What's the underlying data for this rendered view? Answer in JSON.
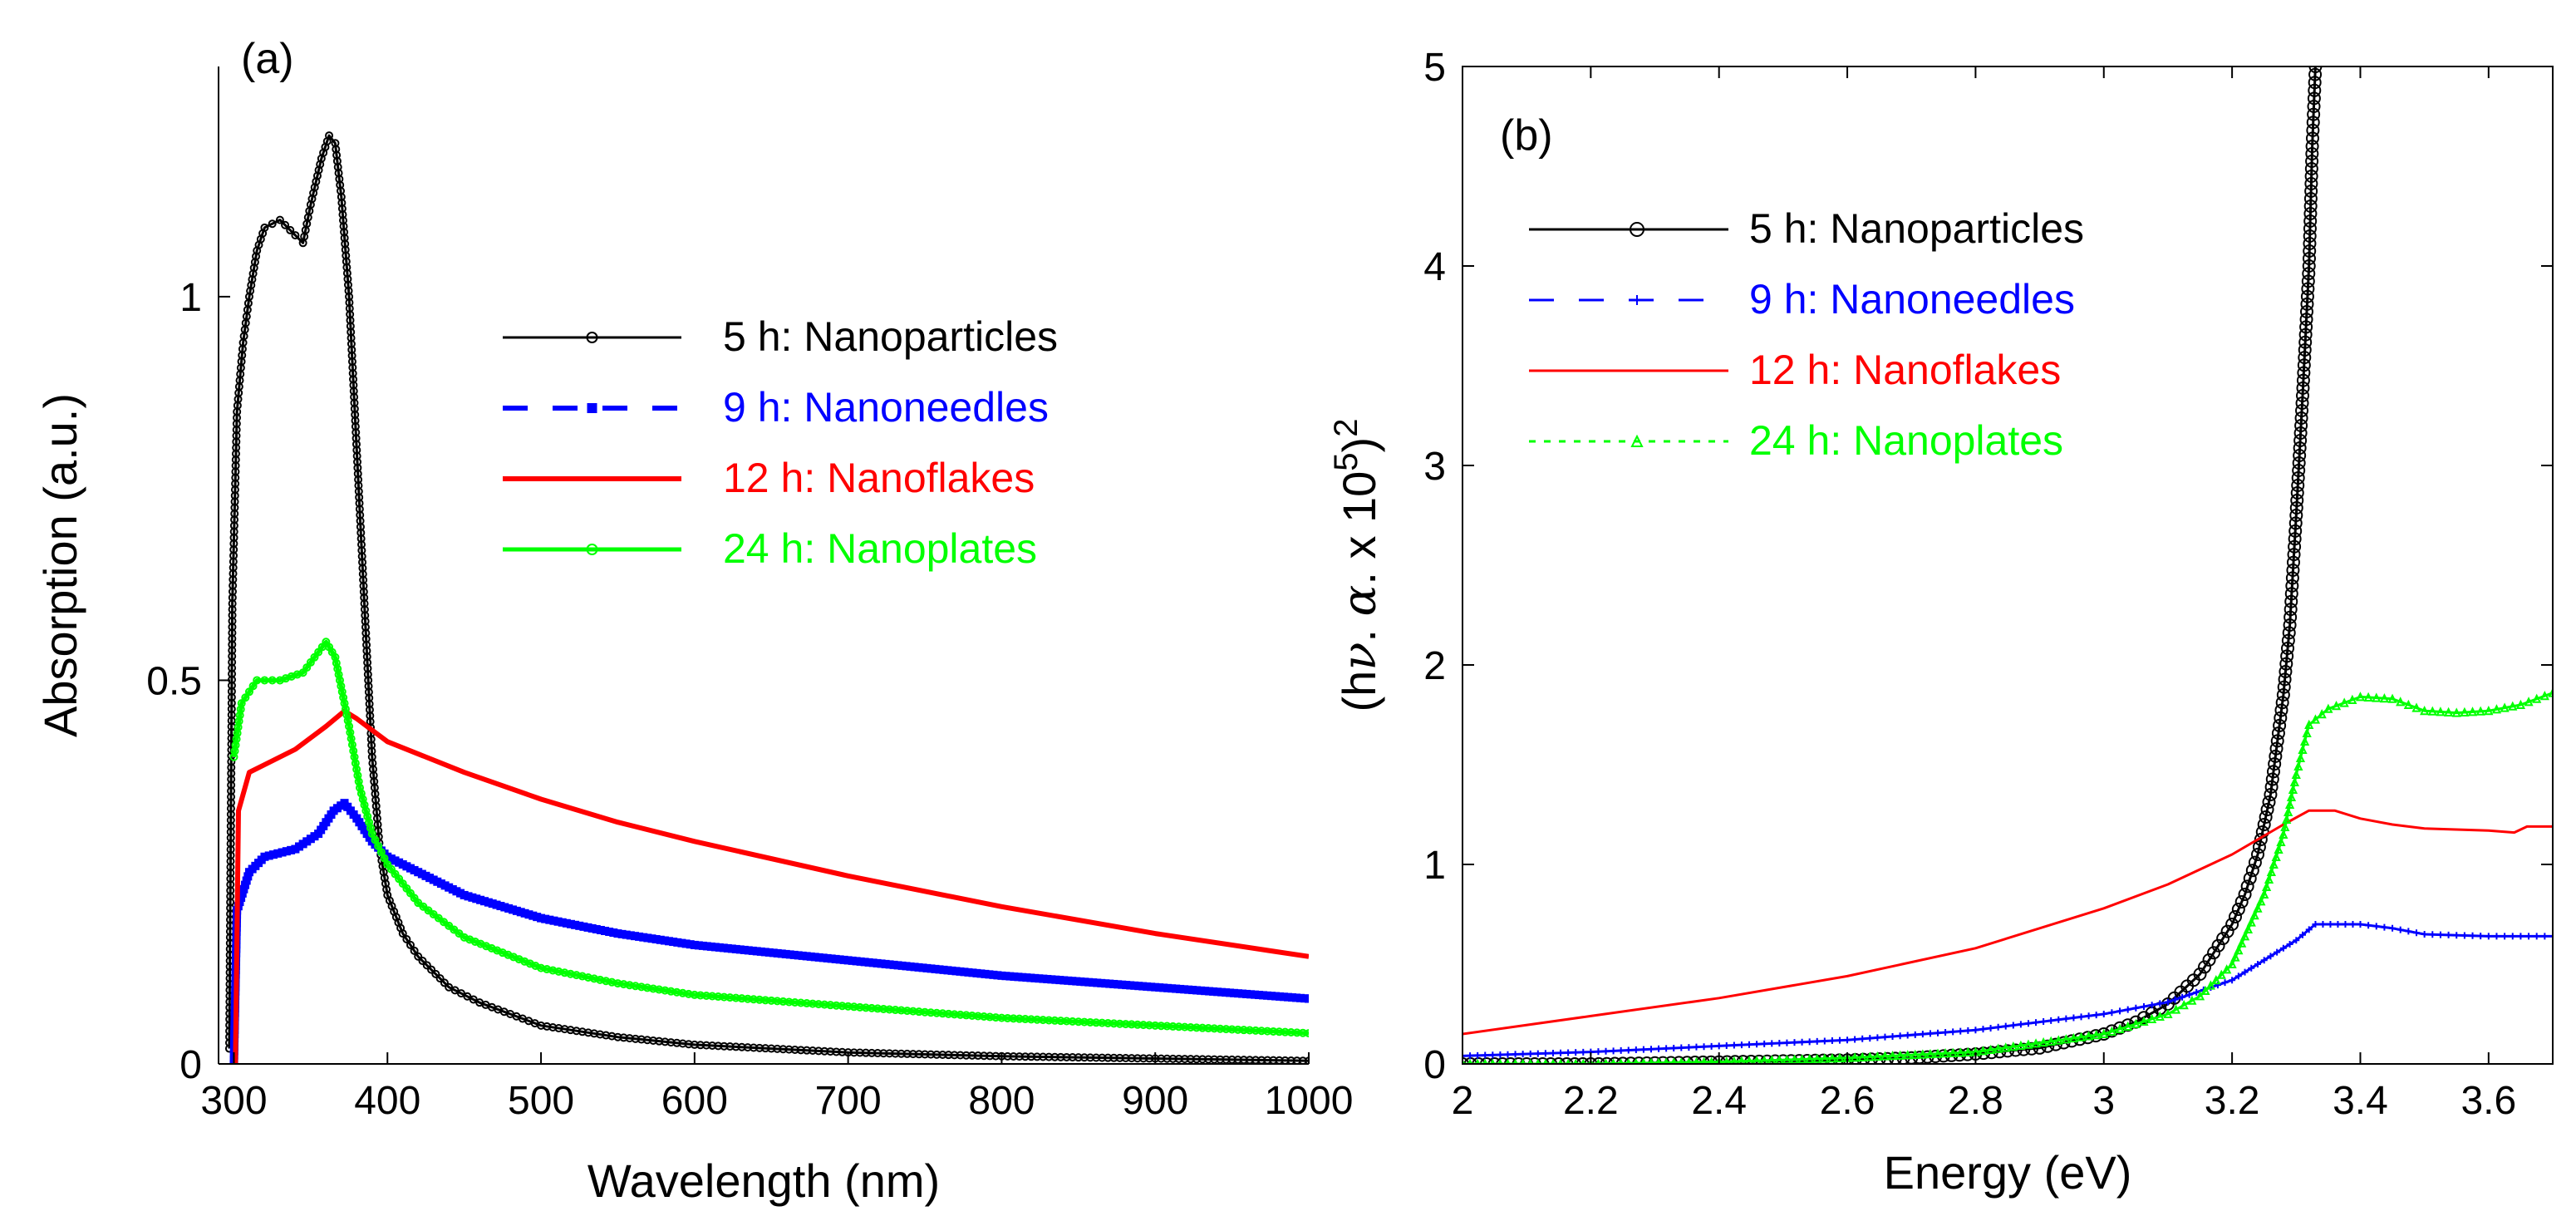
{
  "chart_data": [
    {
      "panel_label": "(a)",
      "type": "line",
      "xlabel": "Wavelength (nm)",
      "ylabel": "Absorption (a.u.)",
      "xlim": [
        290,
        1000
      ],
      "ylim": [
        0,
        1.3
      ],
      "xticks": [
        300,
        400,
        500,
        600,
        700,
        800,
        900,
        1000
      ],
      "yticks": [
        0,
        0.5,
        1
      ],
      "ytick_labels": [
        "0",
        "0.5",
        "1"
      ],
      "legend_position": "upper-right",
      "series": [
        {
          "name": "5 h: Nanoparticles",
          "color": "#000000",
          "marker": "circle",
          "line_width": 3,
          "points": [
            [
              297,
              0.02
            ],
            [
              299,
              0.6
            ],
            [
              302,
              0.85
            ],
            [
              306,
              0.94
            ],
            [
              310,
              1.0
            ],
            [
              315,
              1.06
            ],
            [
              320,
              1.09
            ],
            [
              330,
              1.1
            ],
            [
              340,
              1.08
            ],
            [
              345,
              1.07
            ],
            [
              350,
              1.12
            ],
            [
              357,
              1.18
            ],
            [
              362,
              1.21
            ],
            [
              366,
              1.2
            ],
            [
              370,
              1.13
            ],
            [
              375,
              1.0
            ],
            [
              380,
              0.8
            ],
            [
              385,
              0.6
            ],
            [
              390,
              0.4
            ],
            [
              395,
              0.28
            ],
            [
              400,
              0.22
            ],
            [
              410,
              0.17
            ],
            [
              420,
              0.14
            ],
            [
              440,
              0.1
            ],
            [
              460,
              0.08
            ],
            [
              480,
              0.065
            ],
            [
              500,
              0.05
            ],
            [
              550,
              0.035
            ],
            [
              600,
              0.025
            ],
            [
              700,
              0.015
            ],
            [
              800,
              0.01
            ],
            [
              900,
              0.007
            ],
            [
              1000,
              0.004
            ]
          ]
        },
        {
          "name": "9 h: Nanoneedles",
          "color": "#0000ff",
          "marker": "square",
          "line_width": 9,
          "points": [
            [
              300,
              0.0
            ],
            [
              302,
              0.2
            ],
            [
              310,
              0.25
            ],
            [
              320,
              0.27
            ],
            [
              340,
              0.28
            ],
            [
              355,
              0.3
            ],
            [
              365,
              0.33
            ],
            [
              372,
              0.34
            ],
            [
              380,
              0.32
            ],
            [
              390,
              0.29
            ],
            [
              400,
              0.27
            ],
            [
              450,
              0.22
            ],
            [
              500,
              0.19
            ],
            [
              550,
              0.17
            ],
            [
              600,
              0.155
            ],
            [
              700,
              0.135
            ],
            [
              800,
              0.115
            ],
            [
              900,
              0.1
            ],
            [
              1000,
              0.085
            ]
          ]
        },
        {
          "name": "12 h: Nanoflakes",
          "color": "#ff0000",
          "marker": "none",
          "line_width": 6,
          "points": [
            [
              301,
              0.0
            ],
            [
              303,
              0.33
            ],
            [
              310,
              0.38
            ],
            [
              320,
              0.39
            ],
            [
              340,
              0.41
            ],
            [
              360,
              0.44
            ],
            [
              372,
              0.46
            ],
            [
              380,
              0.45
            ],
            [
              400,
              0.42
            ],
            [
              450,
              0.38
            ],
            [
              500,
              0.345
            ],
            [
              550,
              0.315
            ],
            [
              600,
              0.29
            ],
            [
              700,
              0.245
            ],
            [
              800,
              0.205
            ],
            [
              900,
              0.17
            ],
            [
              1000,
              0.14
            ]
          ]
        },
        {
          "name": "24 h: Nanoplates",
          "color": "#00ff00",
          "marker": "circle",
          "line_width": 5,
          "points": [
            [
              300,
              0.4
            ],
            [
              305,
              0.47
            ],
            [
              315,
              0.5
            ],
            [
              330,
              0.5
            ],
            [
              345,
              0.51
            ],
            [
              360,
              0.55
            ],
            [
              366,
              0.53
            ],
            [
              375,
              0.44
            ],
            [
              382,
              0.36
            ],
            [
              390,
              0.3
            ],
            [
              400,
              0.26
            ],
            [
              420,
              0.21
            ],
            [
              450,
              0.165
            ],
            [
              500,
              0.125
            ],
            [
              550,
              0.105
            ],
            [
              600,
              0.09
            ],
            [
              700,
              0.075
            ],
            [
              800,
              0.06
            ],
            [
              900,
              0.05
            ],
            [
              1000,
              0.04
            ]
          ]
        }
      ]
    },
    {
      "panel_label": "(b)",
      "type": "line",
      "xlabel": "Energy (eV)",
      "ylabel_prefix": "(h",
      "ylabel_nu": "ν",
      "ylabel_dot": ". ",
      "ylabel_alpha": "α",
      "ylabel_x": ". x 10",
      "ylabel_five": "5",
      "ylabel_close": ")",
      "ylabel_two": "2",
      "xlim": [
        2,
        3.7
      ],
      "ylim": [
        0,
        5
      ],
      "xticks": [
        2,
        2.2,
        2.4,
        2.6,
        2.8,
        3,
        3.2,
        3.4,
        3.6
      ],
      "xtick_labels": [
        "2",
        "2.2",
        "2.4",
        "2.6",
        "2.8",
        "3",
        "3.2",
        "3.4",
        "3.6"
      ],
      "yticks": [
        0,
        1,
        2,
        3,
        4,
        5
      ],
      "legend_position": "upper-left",
      "series": [
        {
          "name": "5 h: Nanoparticles",
          "color": "#000000",
          "marker": "circle",
          "line_width": 3,
          "points": [
            [
              2.0,
              0.0
            ],
            [
              2.1,
              0.0
            ],
            [
              2.2,
              0.0
            ],
            [
              2.3,
              0.005
            ],
            [
              2.4,
              0.01
            ],
            [
              2.5,
              0.015
            ],
            [
              2.6,
              0.02
            ],
            [
              2.7,
              0.03
            ],
            [
              2.8,
              0.05
            ],
            [
              2.9,
              0.08
            ],
            [
              3.0,
              0.15
            ],
            [
              3.05,
              0.21
            ],
            [
              3.1,
              0.3
            ],
            [
              3.15,
              0.45
            ],
            [
              3.2,
              0.7
            ],
            [
              3.22,
              0.85
            ],
            [
              3.24,
              1.05
            ],
            [
              3.26,
              1.35
            ],
            [
              3.28,
              1.85
            ],
            [
              3.29,
              2.2
            ],
            [
              3.3,
              2.75
            ],
            [
              3.31,
              3.35
            ],
            [
              3.32,
              4.0
            ],
            [
              3.325,
              4.6
            ],
            [
              3.33,
              5.0
            ]
          ]
        },
        {
          "name": "9 h: Nanoneedles",
          "color": "#0000ff",
          "marker": "plus",
          "line_width": 3,
          "points": [
            [
              2.0,
              0.04
            ],
            [
              2.2,
              0.06
            ],
            [
              2.4,
              0.09
            ],
            [
              2.6,
              0.12
            ],
            [
              2.8,
              0.17
            ],
            [
              3.0,
              0.25
            ],
            [
              3.1,
              0.31
            ],
            [
              3.2,
              0.42
            ],
            [
              3.25,
              0.52
            ],
            [
              3.3,
              0.62
            ],
            [
              3.33,
              0.7
            ],
            [
              3.4,
              0.7
            ],
            [
              3.45,
              0.68
            ],
            [
              3.5,
              0.65
            ],
            [
              3.6,
              0.64
            ],
            [
              3.7,
              0.64
            ]
          ]
        },
        {
          "name": "12 h: Nanoflakes",
          "color": "#ff0000",
          "marker": "none",
          "line_width": 3,
          "points": [
            [
              2.0,
              0.15
            ],
            [
              2.2,
              0.24
            ],
            [
              2.4,
              0.33
            ],
            [
              2.6,
              0.44
            ],
            [
              2.8,
              0.58
            ],
            [
              3.0,
              0.78
            ],
            [
              3.1,
              0.9
            ],
            [
              3.2,
              1.05
            ],
            [
              3.28,
              1.2
            ],
            [
              3.32,
              1.27
            ],
            [
              3.36,
              1.27
            ],
            [
              3.4,
              1.23
            ],
            [
              3.45,
              1.2
            ],
            [
              3.5,
              1.18
            ],
            [
              3.6,
              1.17
            ],
            [
              3.64,
              1.16
            ],
            [
              3.66,
              1.19
            ],
            [
              3.7,
              1.19
            ]
          ]
        },
        {
          "name": "24 h: Nanoplates",
          "color": "#00ff00",
          "marker": "triangle",
          "line_width": 3,
          "points": [
            [
              2.0,
              0.0
            ],
            [
              2.2,
              0.0
            ],
            [
              2.4,
              0.01
            ],
            [
              2.6,
              0.03
            ],
            [
              2.8,
              0.06
            ],
            [
              3.0,
              0.15
            ],
            [
              3.1,
              0.25
            ],
            [
              3.15,
              0.34
            ],
            [
              3.2,
              0.5
            ],
            [
              3.25,
              0.85
            ],
            [
              3.28,
              1.15
            ],
            [
              3.3,
              1.45
            ],
            [
              3.32,
              1.7
            ],
            [
              3.35,
              1.78
            ],
            [
              3.4,
              1.84
            ],
            [
              3.45,
              1.83
            ],
            [
              3.5,
              1.77
            ],
            [
              3.55,
              1.76
            ],
            [
              3.6,
              1.77
            ],
            [
              3.65,
              1.8
            ],
            [
              3.7,
              1.86
            ]
          ]
        }
      ]
    }
  ]
}
